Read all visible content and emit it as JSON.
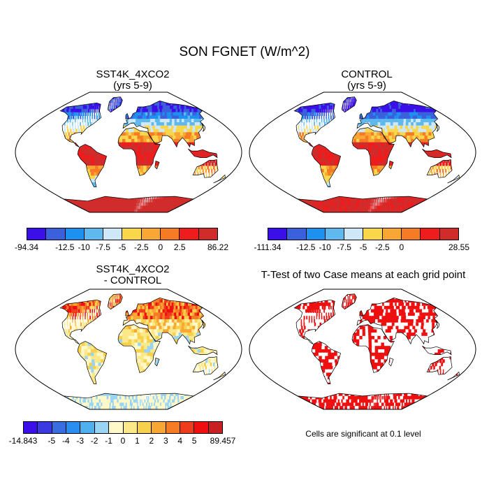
{
  "title": "SON FGNET (W/m^2)",
  "panels": [
    {
      "id": "sst4k",
      "title_line1": "SST4K_4XCO2",
      "title_line2": "(yrs 5-9)",
      "colorbar": {
        "colors": [
          "#3b10e8",
          "#3a60dc",
          "#1e90f0",
          "#5fb8ee",
          "#cfe8f8",
          "#f9d74c",
          "#f8a634",
          "#f57b24",
          "#ee1c1c",
          "#d12c2c"
        ],
        "labels": [
          "-94.34",
          "-12.5",
          "-10",
          "-7.5",
          "-5",
          "-2.5",
          "0",
          "2.5",
          "86.22"
        ],
        "label_boundaries": [
          0,
          2,
          3,
          4,
          5,
          6,
          7,
          8,
          10
        ]
      }
    },
    {
      "id": "control",
      "title_line1": "CONTROL",
      "title_line2": "(yrs 5-9)",
      "colorbar": {
        "colors": [
          "#3b10e8",
          "#3a60dc",
          "#1e90f0",
          "#5fb8ee",
          "#cfe8f8",
          "#f9d74c",
          "#f8a634",
          "#f57b24",
          "#ee1c1c",
          "#d12c2c"
        ],
        "labels": [
          "-111.34",
          "-12.5",
          "-10",
          "-7.5",
          "-5",
          "-2.5",
          "0",
          "28.55"
        ],
        "label_boundaries": [
          0,
          2,
          3,
          4,
          5,
          6,
          7,
          10
        ]
      }
    },
    {
      "id": "diff",
      "title_line1": "SST4K_4XCO2",
      "title_line2": "- CONTROL",
      "colorbar": {
        "colors": [
          "#3b10e8",
          "#3a3ae0",
          "#3a6ee0",
          "#2a8ef0",
          "#4fb0f0",
          "#9ad4f4",
          "#fff8c8",
          "#fbe888",
          "#f9d04c",
          "#f8a634",
          "#f57b24",
          "#ee3c1c",
          "#ee1010",
          "#c82020"
        ],
        "labels": [
          "-14.843",
          "-5",
          "-4",
          "-3",
          "-2",
          "-1",
          "0",
          "1",
          "2",
          "3",
          "4",
          "5",
          "89.457"
        ],
        "label_boundaries": [
          0,
          2,
          3,
          4,
          5,
          6,
          7,
          8,
          9,
          10,
          11,
          12,
          14
        ]
      }
    },
    {
      "id": "ttest",
      "title_line1": "T-Test of two Case means at each grid point",
      "significance_color": "#ee1010"
    }
  ],
  "significance_note": "Cells are significant at 0.1 level"
}
